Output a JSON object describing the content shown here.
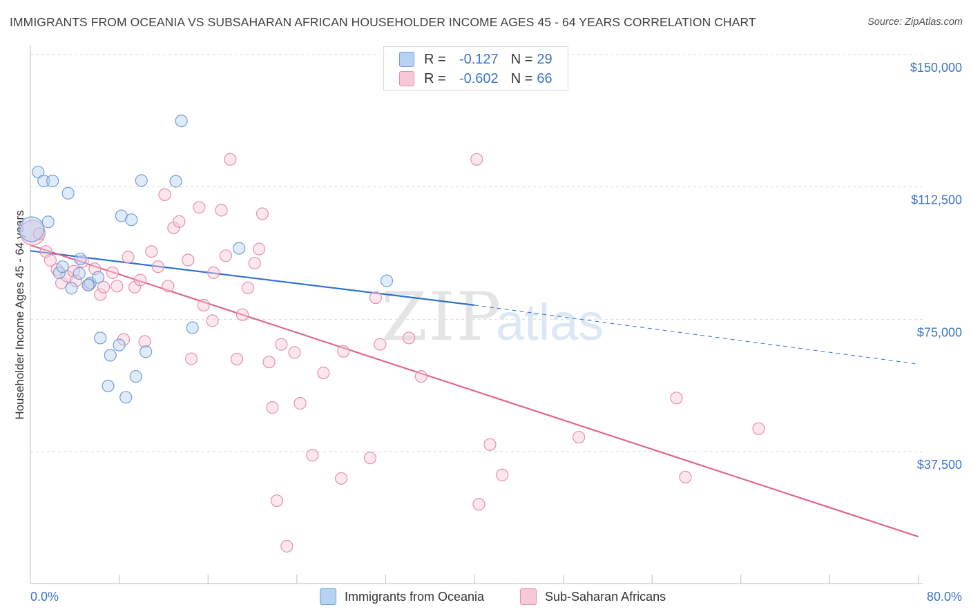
{
  "title": "IMMIGRANTS FROM OCEANIA VS SUBSAHARAN AFRICAN HOUSEHOLDER INCOME AGES 45 - 64 YEARS CORRELATION CHART",
  "source": "Source: ZipAtlas.com",
  "legend_top": {
    "rows": [
      {
        "r_label": "R =",
        "r_value": "-0.127",
        "n_label": "N =",
        "n_value": "29"
      },
      {
        "r_label": "R =",
        "r_value": "-0.602",
        "n_label": "N =",
        "n_value": "66"
      }
    ]
  },
  "legend_bottom": [
    "Immigrants from Oceania",
    "Sub-Saharan Africans"
  ],
  "watermark": {
    "zip": "ZIP",
    "atlas": "atlas"
  },
  "colors": {
    "blue_fill": "#b8d2f2",
    "blue_stroke": "#6f9fd6",
    "blue_line": "#2f70cc",
    "pink_fill": "#f7c9d8",
    "pink_stroke": "#e78fae",
    "pink_line": "#e0648f",
    "tick_label": "#3a74c9",
    "grid": "#d9d9d9",
    "axis": "#bdbdbd"
  },
  "chart_data": {
    "type": "scatter",
    "title": "IMMIGRANTS FROM OCEANIA VS SUBSAHARAN AFRICAN HOUSEHOLDER INCOME AGES 45 - 64 YEARS CORRELATION CHART",
    "xlabel": "",
    "ylabel": "Householder Income Ages 45 - 64 years",
    "xlim": [
      0,
      80
    ],
    "ylim": [
      0,
      155000
    ],
    "x_tick_labels": [
      "0.0%",
      "80.0%"
    ],
    "y_ticks": [
      37500,
      75000,
      112500,
      150000
    ],
    "y_tick_labels": [
      "$37,500",
      "$75,000",
      "$112,500",
      "$150,000"
    ],
    "grid": true,
    "legend_placement": "top-center",
    "series": [
      {
        "name": "Immigrants from Oceania",
        "r": -0.127,
        "n": 29,
        "trend": {
          "x_start": 0.0,
          "y_start": 94400,
          "x_solid_end": 40.0,
          "y_solid_end": 79000,
          "x_end": 80.0,
          "y_end": 62300
        },
        "points": [
          {
            "x": 0.1,
            "y": 100500,
            "big": true
          },
          {
            "x": 0.7,
            "y": 116700
          },
          {
            "x": 1.2,
            "y": 114200
          },
          {
            "x": 2.0,
            "y": 114200
          },
          {
            "x": 3.4,
            "y": 110700
          },
          {
            "x": 1.6,
            "y": 102600
          },
          {
            "x": 2.6,
            "y": 88200
          },
          {
            "x": 4.5,
            "y": 92100
          },
          {
            "x": 3.7,
            "y": 83800
          },
          {
            "x": 4.4,
            "y": 88000
          },
          {
            "x": 5.4,
            "y": 85300
          },
          {
            "x": 6.1,
            "y": 86900
          },
          {
            "x": 5.2,
            "y": 84700
          },
          {
            "x": 8.2,
            "y": 104300
          },
          {
            "x": 9.1,
            "y": 103200
          },
          {
            "x": 10.0,
            "y": 114300
          },
          {
            "x": 13.1,
            "y": 114100
          },
          {
            "x": 13.6,
            "y": 131200
          },
          {
            "x": 18.8,
            "y": 95100
          },
          {
            "x": 32.1,
            "y": 85900
          },
          {
            "x": 6.3,
            "y": 69700
          },
          {
            "x": 8.0,
            "y": 67700
          },
          {
            "x": 7.2,
            "y": 64800
          },
          {
            "x": 10.4,
            "y": 65800
          },
          {
            "x": 14.6,
            "y": 72600
          },
          {
            "x": 7.0,
            "y": 56100
          },
          {
            "x": 9.5,
            "y": 58800
          },
          {
            "x": 8.6,
            "y": 52900
          },
          {
            "x": 2.9,
            "y": 89900
          }
        ]
      },
      {
        "name": "Sub-Saharan Africans",
        "r": -0.602,
        "n": 66,
        "trend": {
          "x_start": 0.0,
          "y_start": 96000,
          "x_end": 80.0,
          "y_end": 13400
        },
        "points": [
          {
            "x": 0.2,
            "y": 99500,
            "big": true
          },
          {
            "x": 1.4,
            "y": 94200
          },
          {
            "x": 1.8,
            "y": 91700
          },
          {
            "x": 2.4,
            "y": 89100
          },
          {
            "x": 2.8,
            "y": 85300
          },
          {
            "x": 3.3,
            "y": 87200
          },
          {
            "x": 3.9,
            "y": 88600
          },
          {
            "x": 4.1,
            "y": 85900
          },
          {
            "x": 4.7,
            "y": 91400
          },
          {
            "x": 5.3,
            "y": 84800
          },
          {
            "x": 5.8,
            "y": 89300
          },
          {
            "x": 6.3,
            "y": 82000
          },
          {
            "x": 6.6,
            "y": 84100
          },
          {
            "x": 7.4,
            "y": 88200
          },
          {
            "x": 7.8,
            "y": 84400
          },
          {
            "x": 8.8,
            "y": 92600
          },
          {
            "x": 9.4,
            "y": 84100
          },
          {
            "x": 9.9,
            "y": 86100
          },
          {
            "x": 10.9,
            "y": 94200
          },
          {
            "x": 11.5,
            "y": 89900
          },
          {
            "x": 12.4,
            "y": 84400
          },
          {
            "x": 12.1,
            "y": 110300
          },
          {
            "x": 12.9,
            "y": 100900
          },
          {
            "x": 13.4,
            "y": 102700
          },
          {
            "x": 14.2,
            "y": 91800
          },
          {
            "x": 15.2,
            "y": 106700
          },
          {
            "x": 15.6,
            "y": 79000
          },
          {
            "x": 16.5,
            "y": 88200
          },
          {
            "x": 16.4,
            "y": 74600
          },
          {
            "x": 17.2,
            "y": 105900
          },
          {
            "x": 17.6,
            "y": 93000
          },
          {
            "x": 18.0,
            "y": 120300
          },
          {
            "x": 18.6,
            "y": 63700
          },
          {
            "x": 19.1,
            "y": 76300
          },
          {
            "x": 19.6,
            "y": 83900
          },
          {
            "x": 20.2,
            "y": 90900
          },
          {
            "x": 20.6,
            "y": 94900
          },
          {
            "x": 20.9,
            "y": 104900
          },
          {
            "x": 21.5,
            "y": 62900
          },
          {
            "x": 21.8,
            "y": 50000
          },
          {
            "x": 22.2,
            "y": 23600
          },
          {
            "x": 22.6,
            "y": 67900
          },
          {
            "x": 23.1,
            "y": 10700
          },
          {
            "x": 23.8,
            "y": 65600
          },
          {
            "x": 24.3,
            "y": 51200
          },
          {
            "x": 25.4,
            "y": 36500
          },
          {
            "x": 26.4,
            "y": 59800
          },
          {
            "x": 28.0,
            "y": 29900
          },
          {
            "x": 28.2,
            "y": 65900
          },
          {
            "x": 30.6,
            "y": 35700
          },
          {
            "x": 31.1,
            "y": 81100
          },
          {
            "x": 31.5,
            "y": 67900
          },
          {
            "x": 34.1,
            "y": 69700
          },
          {
            "x": 35.2,
            "y": 58800
          },
          {
            "x": 8.4,
            "y": 69300
          },
          {
            "x": 10.3,
            "y": 68700
          },
          {
            "x": 14.5,
            "y": 63800
          },
          {
            "x": 40.2,
            "y": 120300
          },
          {
            "x": 40.4,
            "y": 22600
          },
          {
            "x": 41.4,
            "y": 39500
          },
          {
            "x": 42.5,
            "y": 30900
          },
          {
            "x": 49.4,
            "y": 41600
          },
          {
            "x": 58.2,
            "y": 52700
          },
          {
            "x": 59.0,
            "y": 30300
          },
          {
            "x": 65.6,
            "y": 44000
          },
          {
            "x": 0.8,
            "y": 99200
          }
        ]
      }
    ]
  }
}
